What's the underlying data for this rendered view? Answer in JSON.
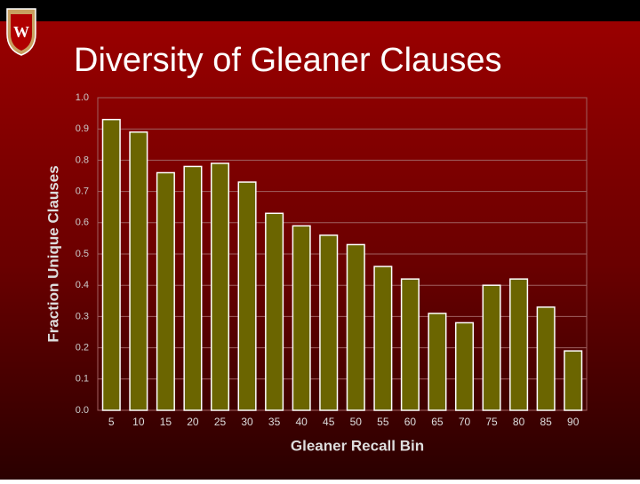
{
  "chart_data": {
    "type": "bar",
    "title": "Diversity of Gleaner Clauses",
    "x_label": "Gleaner Recall Bin",
    "y_label": "Fraction Unique Clauses",
    "categories": [
      "5",
      "10",
      "15",
      "20",
      "25",
      "30",
      "35",
      "40",
      "45",
      "50",
      "55",
      "60",
      "65",
      "70",
      "75",
      "80",
      "85",
      "90"
    ],
    "values": [
      0.93,
      0.89,
      0.76,
      0.78,
      0.79,
      0.73,
      0.63,
      0.59,
      0.56,
      0.53,
      0.46,
      0.42,
      0.31,
      0.28,
      0.4,
      0.42,
      0.33,
      0.19
    ],
    "color": "#6b6500",
    "ylim": [
      0,
      1
    ],
    "yticks": [
      {
        "value": 0,
        "label": "0.0"
      },
      0.1,
      0.2,
      0.3,
      0.4,
      0.5,
      0.6,
      0.7,
      0.8,
      0.9,
      {
        "value": 1,
        "label": "1.0"
      }
    ],
    "grid": true
  }
}
